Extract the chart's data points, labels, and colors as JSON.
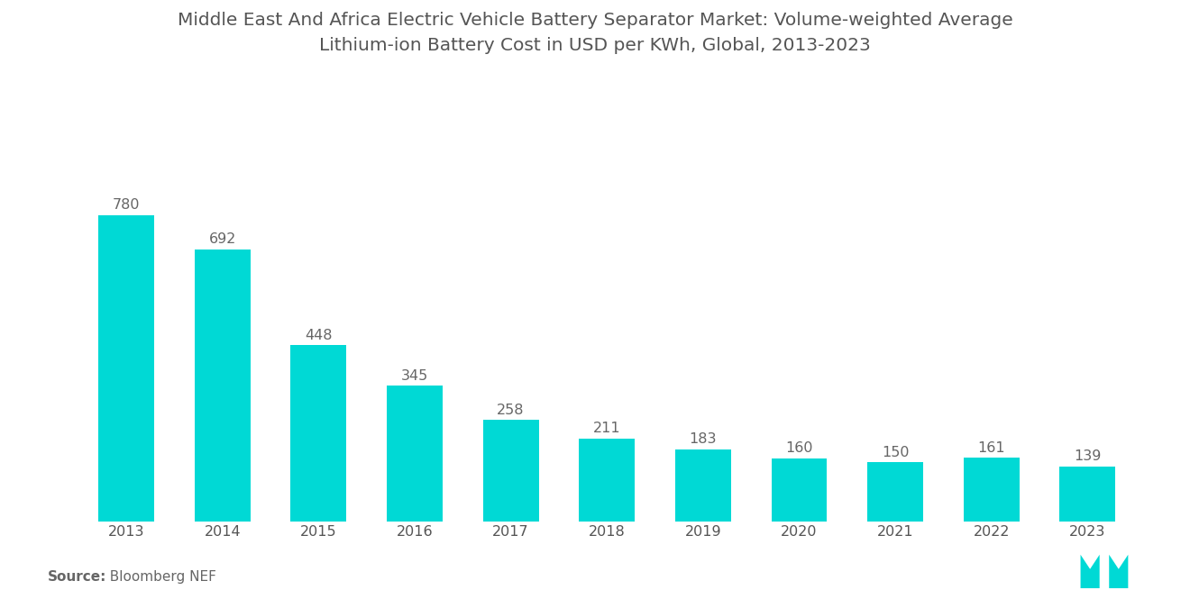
{
  "title_line1": "Middle East And Africa Electric Vehicle Battery Separator Market: Volume-weighted Average",
  "title_line2": "Lithium-ion Battery Cost in USD per KWh, Global, 2013-2023",
  "years": [
    "2013",
    "2014",
    "2015",
    "2016",
    "2017",
    "2018",
    "2019",
    "2020",
    "2021",
    "2022",
    "2023"
  ],
  "values": [
    780,
    692,
    448,
    345,
    258,
    211,
    183,
    160,
    150,
    161,
    139
  ],
  "bar_color": "#00D9D5",
  "background_color": "#ffffff",
  "title_color": "#555555",
  "label_color": "#666666",
  "xlabel_color": "#555555",
  "source_bold": "Source:",
  "source_normal": "  Bloomberg NEF",
  "title_fontsize": 14.5,
  "value_fontsize": 11.5,
  "xtick_fontsize": 11.5,
  "source_fontsize": 11,
  "ylim": [
    0,
    900
  ]
}
